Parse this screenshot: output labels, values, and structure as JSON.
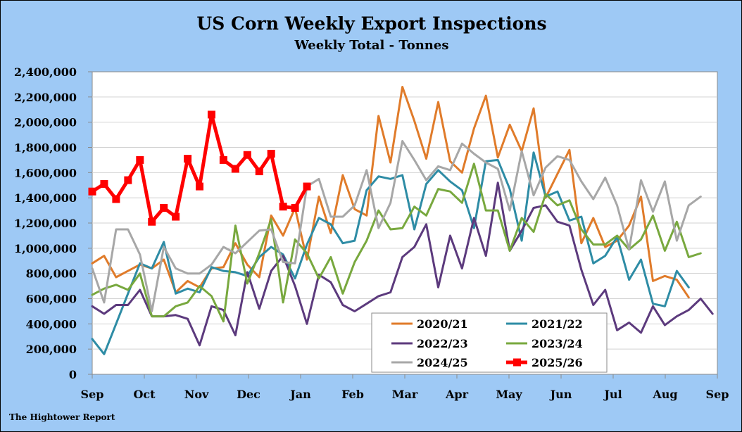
{
  "chart_data": {
    "type": "line",
    "title": "US Corn Weekly Export Inspections",
    "subtitle": "Weekly Total - Tonnes",
    "xlabel": "",
    "ylabel": "",
    "ylim": [
      0,
      2400000
    ],
    "yticks": [
      0,
      200000,
      400000,
      600000,
      800000,
      1000000,
      1200000,
      1400000,
      1600000,
      1800000,
      2000000,
      2200000,
      2400000
    ],
    "ytick_labels": [
      "0",
      "200,000",
      "400,000",
      "600,000",
      "800,000",
      "1,000,000",
      "1,200,000",
      "1,400,000",
      "1,600,000",
      "1,800,000",
      "2,000,000",
      "2,200,000",
      "2,400,000"
    ],
    "x_tick_labels": [
      "Sep",
      "Oct",
      "Nov",
      "Dec",
      "Jan",
      "Feb",
      "Mar",
      "Apr",
      "May",
      "Jun",
      "Jul",
      "Aug",
      "Sep"
    ],
    "x_unit": "week of marketing year (Sep–Aug), week 0 = first week of September",
    "grid": true,
    "legend_position": "bottom-center",
    "series": [
      {
        "name": "2020/21",
        "color": "#e07b2a",
        "width": 3,
        "values": [
          880000,
          940000,
          770000,
          820000,
          870000,
          840000,
          910000,
          650000,
          740000,
          690000,
          840000,
          850000,
          1040000,
          870000,
          770000,
          1260000,
          1100000,
          1320000,
          910000,
          1410000,
          1120000,
          1580000,
          1310000,
          1260000,
          2050000,
          1680000,
          2280000,
          2010000,
          1710000,
          2160000,
          1690000,
          1600000,
          1950000,
          2210000,
          1720000,
          1980000,
          1770000,
          2110000,
          1400000,
          1590000,
          1780000,
          1040000,
          1240000,
          1010000,
          1060000,
          1180000,
          1410000,
          740000,
          780000,
          750000,
          610000
        ]
      },
      {
        "name": "2021/22",
        "color": "#2e8ca5",
        "width": 3,
        "values": [
          280000,
          160000,
          400000,
          640000,
          880000,
          840000,
          1050000,
          640000,
          680000,
          650000,
          850000,
          820000,
          810000,
          780000,
          930000,
          1010000,
          950000,
          760000,
          1030000,
          1240000,
          1190000,
          1040000,
          1060000,
          1460000,
          1570000,
          1550000,
          1580000,
          1150000,
          1510000,
          1620000,
          1530000,
          1460000,
          1160000,
          1690000,
          1700000,
          1470000,
          1060000,
          1760000,
          1410000,
          1450000,
          1220000,
          1250000,
          880000,
          940000,
          1090000,
          750000,
          910000,
          560000,
          540000,
          820000,
          690000
        ]
      },
      {
        "name": "2022/23",
        "color": "#5c3a7d",
        "width": 3,
        "values": [
          540000,
          480000,
          550000,
          550000,
          670000,
          460000,
          460000,
          470000,
          440000,
          230000,
          540000,
          510000,
          310000,
          810000,
          520000,
          820000,
          940000,
          700000,
          400000,
          790000,
          730000,
          550000,
          500000,
          560000,
          620000,
          650000,
          930000,
          1010000,
          1190000,
          690000,
          1100000,
          840000,
          1240000,
          940000,
          1520000,
          980000,
          1140000,
          1320000,
          1340000,
          1210000,
          1180000,
          830000,
          550000,
          670000,
          350000,
          410000,
          330000,
          540000,
          390000,
          460000,
          510000,
          600000,
          480000
        ]
      },
      {
        "name": "2023/24",
        "color": "#78a83e",
        "width": 3,
        "values": [
          630000,
          680000,
          710000,
          670000,
          800000,
          460000,
          460000,
          540000,
          570000,
          700000,
          620000,
          420000,
          1180000,
          720000,
          960000,
          1230000,
          570000,
          1070000,
          960000,
          760000,
          930000,
          640000,
          890000,
          1060000,
          1300000,
          1150000,
          1160000,
          1330000,
          1260000,
          1470000,
          1450000,
          1360000,
          1670000,
          1300000,
          1300000,
          980000,
          1240000,
          1130000,
          1430000,
          1340000,
          1380000,
          1150000,
          1030000,
          1030000,
          1100000,
          990000,
          1070000,
          1260000,
          980000,
          1210000,
          930000,
          960000
        ]
      },
      {
        "name": "2024/25",
        "color": "#a7a7a7",
        "width": 3,
        "values": [
          840000,
          570000,
          1150000,
          1150000,
          950000,
          500000,
          1010000,
          840000,
          800000,
          800000,
          870000,
          1010000,
          960000,
          1050000,
          1140000,
          1150000,
          890000,
          880000,
          1490000,
          1550000,
          1250000,
          1250000,
          1340000,
          1620000,
          1160000,
          1360000,
          1850000,
          1700000,
          1540000,
          1650000,
          1620000,
          1830000,
          1750000,
          1680000,
          1630000,
          1300000,
          1770000,
          1420000,
          1640000,
          1730000,
          1700000,
          1530000,
          1390000,
          1560000,
          1340000,
          990000,
          1540000,
          1290000,
          1530000,
          1060000,
          1340000,
          1410000
        ]
      },
      {
        "name": "2025/26",
        "color": "#ff0000",
        "width": 5,
        "marker": "square",
        "values": [
          1450000,
          1510000,
          1390000,
          1540000,
          1700000,
          1210000,
          1320000,
          1250000,
          1710000,
          1490000,
          2060000,
          1700000,
          1630000,
          1740000,
          1610000,
          1750000,
          1330000,
          1320000,
          1490000
        ]
      }
    ]
  },
  "footer": {
    "credit": "The Hightower Report"
  }
}
